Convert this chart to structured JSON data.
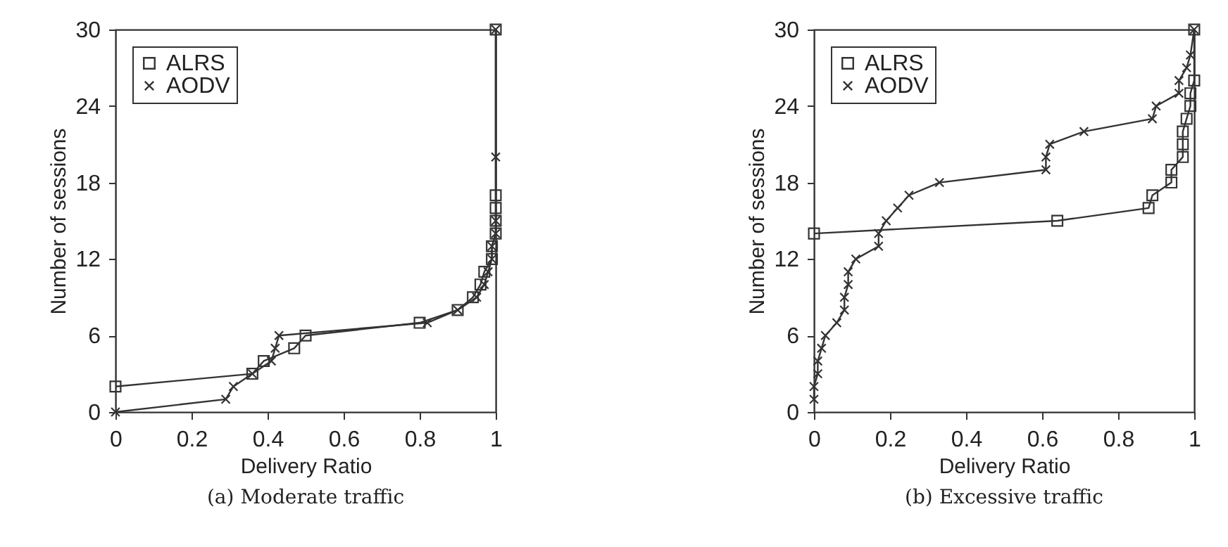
{
  "chart_data": [
    {
      "type": "line",
      "title": "(a) Moderate traffic",
      "xlabel": "Delivery Ratio",
      "ylabel": "Number of sessions",
      "xlim": [
        0,
        1
      ],
      "ylim": [
        0,
        30
      ],
      "xticks": [
        0,
        0.2,
        0.4,
        0.6,
        0.8,
        1
      ],
      "yticks": [
        0,
        6,
        12,
        18,
        24,
        30
      ],
      "grid": false,
      "legend": "top left",
      "line_style": "solid",
      "series": [
        {
          "name": "ALRS",
          "color": "#333333",
          "marker": "square",
          "x": [
            0,
            0.36,
            0.39,
            0.47,
            0.5,
            0.8,
            0.9,
            0.94,
            0.96,
            0.97,
            0.99,
            0.99,
            1,
            1,
            1,
            1,
            1
          ],
          "values": [
            2,
            3,
            4,
            5,
            6,
            7,
            8,
            9,
            10,
            11,
            12,
            13,
            14,
            15,
            16,
            17,
            30
          ]
        },
        {
          "name": "AODV",
          "color": "#333333",
          "marker": "cross",
          "x": [
            0,
            0.29,
            0.31,
            0.36,
            0.41,
            0.42,
            0.43,
            0.82,
            0.9,
            0.95,
            0.97,
            0.98,
            0.99,
            0.99,
            1,
            1,
            1,
            1
          ],
          "values": [
            0,
            1,
            2,
            3,
            4,
            5,
            6,
            7,
            8,
            9,
            10,
            11,
            12,
            13,
            14,
            15,
            20,
            30
          ]
        }
      ]
    },
    {
      "type": "line",
      "title": "(b) Excessive traffic",
      "xlabel": "Delivery Ratio",
      "ylabel": "Number of sessions",
      "xlim": [
        0,
        1
      ],
      "ylim": [
        0,
        30
      ],
      "xticks": [
        0,
        0.2,
        0.4,
        0.6,
        0.8,
        1
      ],
      "yticks": [
        0,
        6,
        12,
        18,
        24,
        30
      ],
      "grid": false,
      "legend": "top left",
      "line_style": "solid",
      "series": [
        {
          "name": "ALRS",
          "color": "#333333",
          "marker": "square",
          "x": [
            0,
            0.64,
            0.88,
            0.89,
            0.94,
            0.94,
            0.97,
            0.97,
            0.97,
            0.98,
            0.99,
            0.99,
            1,
            1
          ],
          "values": [
            14,
            15,
            16,
            17,
            18,
            19,
            20,
            21,
            22,
            23,
            24,
            25,
            26,
            30
          ]
        },
        {
          "name": "AODV",
          "color": "#333333",
          "marker": "cross",
          "x": [
            0,
            0,
            0.01,
            0.01,
            0.02,
            0.03,
            0.06,
            0.08,
            0.08,
            0.09,
            0.09,
            0.11,
            0.17,
            0.17,
            0.19,
            0.22,
            0.25,
            0.33,
            0.61,
            0.61,
            0.62,
            0.71,
            0.89,
            0.9,
            0.96,
            0.96,
            0.98,
            0.99,
            1
          ],
          "values": [
            1,
            2,
            3,
            4,
            5,
            6,
            7,
            8,
            9,
            10,
            11,
            12,
            13,
            14,
            15,
            16,
            17,
            18,
            19,
            20,
            21,
            22,
            23,
            24,
            25,
            26,
            27,
            28,
            30
          ]
        }
      ]
    }
  ]
}
